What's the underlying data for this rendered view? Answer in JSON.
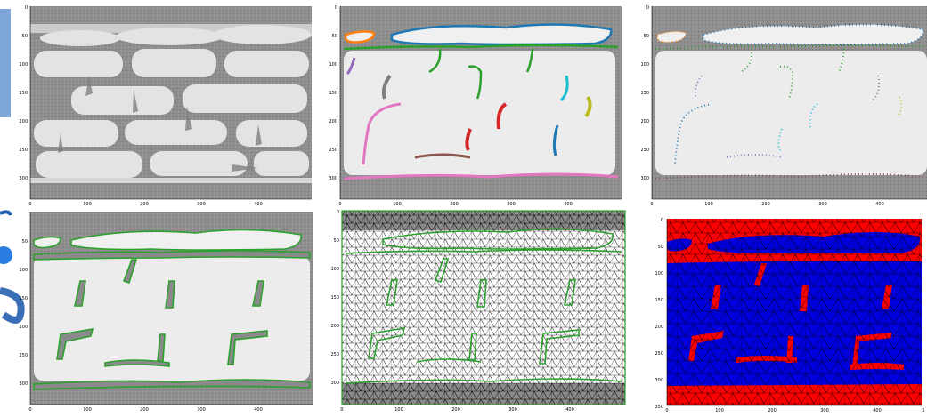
{
  "axes": {
    "x_ticks": [
      "0",
      "100",
      "200",
      "300",
      "400"
    ],
    "y_ticks": [
      "0",
      "50",
      "100",
      "150",
      "200",
      "250",
      "300"
    ],
    "y_ticks_mesh": [
      "0",
      "50",
      "100",
      "150",
      "200",
      "250",
      "300",
      "350"
    ],
    "x_ticks_mesh": [
      "0",
      "100",
      "200",
      "300",
      "400",
      "5"
    ]
  },
  "panels": [
    {
      "id": "raw-ct-slice"
    },
    {
      "id": "segmented-contours"
    },
    {
      "id": "contour-point-sampling"
    },
    {
      "id": "merged-green-contours"
    },
    {
      "id": "triangulated-mesh"
    },
    {
      "id": "material-labeled-mesh"
    }
  ],
  "colors": {
    "ct_background": "#9a9a9a",
    "ct_bright": "#eeeeee",
    "green_contour": "#2ca02c",
    "matrix_red": "#ff0000",
    "fiber_blue": "#0000dd",
    "mesh_line": "#000000",
    "deco_blue": "#3a7bd5",
    "deco_panel": "#7ea6d8"
  }
}
